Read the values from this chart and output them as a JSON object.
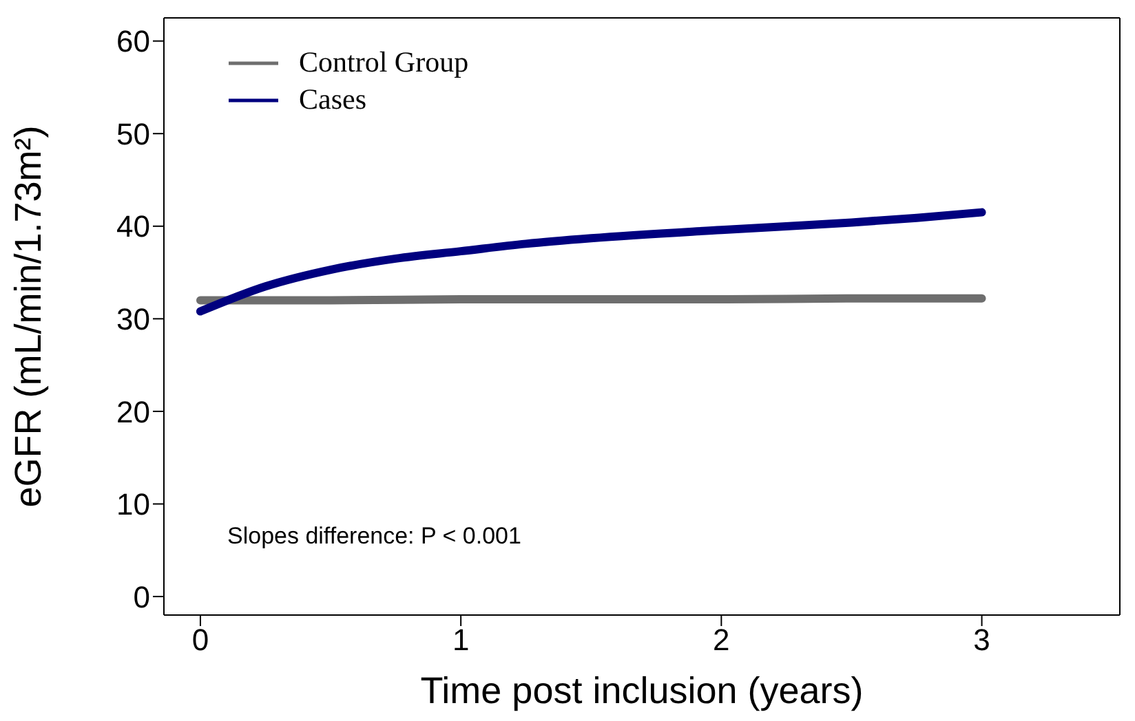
{
  "chart_data": {
    "type": "line",
    "xlabel": "Time post inclusion (years)",
    "ylabel": "eGFR (mL/min/1.73m²)",
    "xlim": [
      -0.14,
      3.53
    ],
    "xticks": [
      0,
      1,
      2,
      3
    ],
    "ylim": [
      -2,
      62.5
    ],
    "yticks": [
      0,
      10,
      20,
      30,
      40,
      50,
      60
    ],
    "grid": false,
    "legend": "top left",
    "marker": "none",
    "line_style": "solid",
    "annotations": [
      "Slopes difference: P < 0.001"
    ],
    "series": [
      {
        "name": "Control Group",
        "color": "#6e6e6e",
        "x": [
          0,
          0.5,
          1,
          1.5,
          2,
          2.5,
          3
        ],
        "values": [
          32,
          32,
          32.1,
          32.1,
          32.1,
          32.2,
          32.2
        ]
      },
      {
        "name": "Cases",
        "color": "#00007f",
        "x": [
          0,
          0.25,
          0.5,
          0.75,
          1,
          1.25,
          1.5,
          2,
          2.5,
          2.75,
          3
        ],
        "values": [
          30.8,
          33.5,
          35.3,
          36.5,
          37.3,
          38.1,
          38.7,
          39.6,
          40.4,
          40.9,
          41.5
        ]
      }
    ]
  }
}
